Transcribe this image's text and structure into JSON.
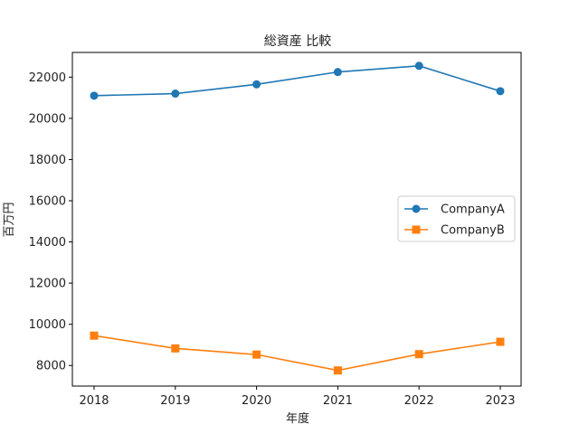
{
  "chart_data": {
    "type": "line",
    "title": "総資産 比較",
    "xlabel": "年度",
    "ylabel": "百万円",
    "categories": [
      "2018",
      "2019",
      "2020",
      "2021",
      "2022",
      "2023"
    ],
    "series": [
      {
        "name": "CompanyA",
        "values": [
          21100,
          21200,
          21650,
          22250,
          22550,
          21320
        ],
        "color": "#1f77b4",
        "marker": "circle"
      },
      {
        "name": "CompanyB",
        "values": [
          9450,
          8830,
          8530,
          7760,
          8550,
          9150
        ],
        "color": "#ff7f0e",
        "marker": "square"
      }
    ],
    "ylim": [
      7000,
      23200
    ],
    "yticks": [
      8000,
      10000,
      12000,
      14000,
      16000,
      18000,
      20000,
      22000
    ],
    "grid": false,
    "legend_position": "center-right"
  }
}
